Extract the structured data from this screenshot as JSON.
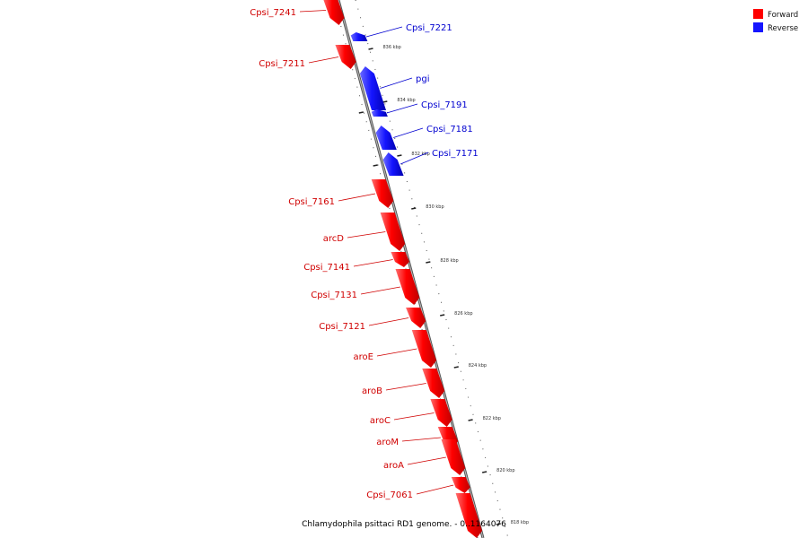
{
  "caption": "Chlamydophila psittaci RD1 genome. - 0..1164076",
  "legend": [
    {
      "label": "Forward",
      "color": "#ff0000"
    },
    {
      "label": "Reverse",
      "color": "#1515ff"
    }
  ],
  "ruler": [
    "836 kbp",
    "834 kbp",
    "832 kbp",
    "830 kbp",
    "828 kbp",
    "826 kbp",
    "824 kbp",
    "822 kbp",
    "820 kbp",
    "818 kbp"
  ],
  "genes": [
    {
      "name": "Cpsi_7241",
      "strand": "forward"
    },
    {
      "name": "Cpsi_7221",
      "strand": "reverse"
    },
    {
      "name": "Cpsi_7211",
      "strand": "forward"
    },
    {
      "name": "pgi",
      "strand": "reverse"
    },
    {
      "name": "Cpsi_7191",
      "strand": "reverse"
    },
    {
      "name": "Cpsi_7181",
      "strand": "reverse"
    },
    {
      "name": "Cpsi_7171",
      "strand": "reverse"
    },
    {
      "name": "Cpsi_7161",
      "strand": "forward"
    },
    {
      "name": "arcD",
      "strand": "forward"
    },
    {
      "name": "Cpsi_7141",
      "strand": "forward"
    },
    {
      "name": "Cpsi_7131",
      "strand": "forward"
    },
    {
      "name": "Cpsi_7121",
      "strand": "forward"
    },
    {
      "name": "aroE",
      "strand": "forward"
    },
    {
      "name": "aroB",
      "strand": "forward"
    },
    {
      "name": "aroC",
      "strand": "forward"
    },
    {
      "name": "aroM",
      "strand": "forward"
    },
    {
      "name": "aroA",
      "strand": "forward"
    },
    {
      "name": "Cpsi_7061",
      "strand": "forward"
    },
    {
      "name": "",
      "strand": "forward"
    }
  ]
}
